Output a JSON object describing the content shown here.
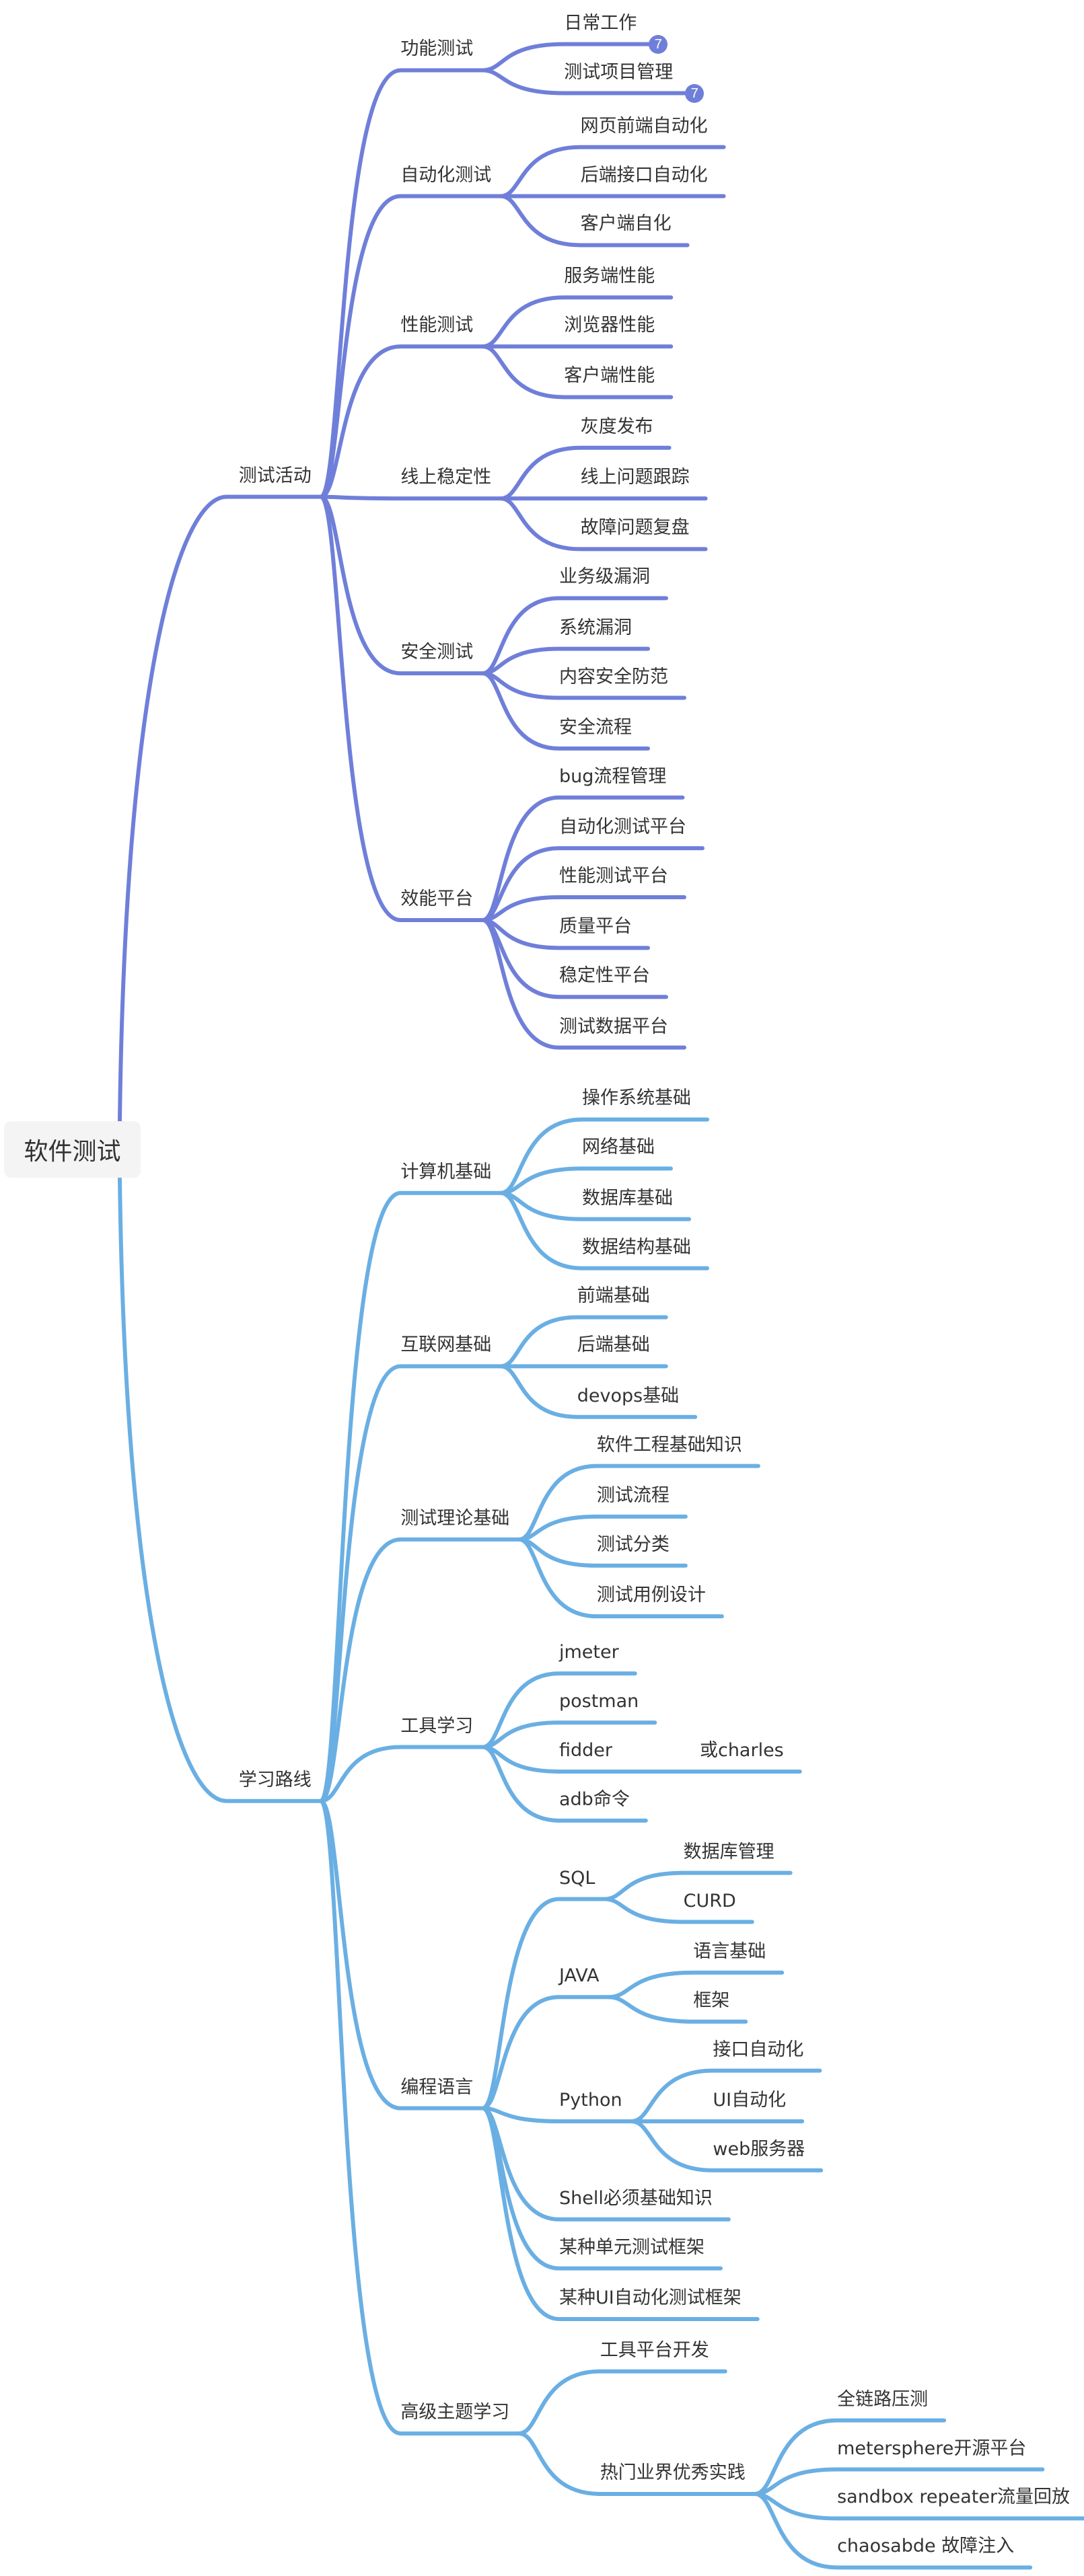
{
  "colors": {
    "branch_testing": "#6f7fd9",
    "branch_learning": "#6aafe3",
    "text": "#333333",
    "root_bg": "#f4f4f4"
  },
  "mindmap": {
    "label": "软件测试",
    "children": [
      {
        "label": "测试活动",
        "children": [
          {
            "label": "功能测试",
            "children": [
              {
                "label": "日常工作",
                "badge": "7"
              },
              {
                "label": "测试项目管理",
                "badge": "7"
              }
            ]
          },
          {
            "label": "自动化测试",
            "children": [
              {
                "label": "网页前端自动化"
              },
              {
                "label": "后端接口自动化"
              },
              {
                "label": "客户端自化"
              }
            ]
          },
          {
            "label": "性能测试",
            "children": [
              {
                "label": "服务端性能"
              },
              {
                "label": "浏览器性能"
              },
              {
                "label": "客户端性能"
              }
            ]
          },
          {
            "label": "线上稳定性",
            "children": [
              {
                "label": "灰度发布"
              },
              {
                "label": "线上问题跟踪"
              },
              {
                "label": "故障问题复盘"
              }
            ]
          },
          {
            "label": "安全测试",
            "children": [
              {
                "label": "业务级漏洞"
              },
              {
                "label": "系统漏洞"
              },
              {
                "label": "内容安全防范"
              },
              {
                "label": "安全流程"
              }
            ]
          },
          {
            "label": "效能平台",
            "children": [
              {
                "label": "bug流程管理"
              },
              {
                "label": "自动化测试平台"
              },
              {
                "label": "性能测试平台"
              },
              {
                "label": "质量平台"
              },
              {
                "label": "稳定性平台"
              },
              {
                "label": "测试数据平台"
              }
            ]
          }
        ]
      },
      {
        "label": "学习路线",
        "children": [
          {
            "label": "计算机基础",
            "children": [
              {
                "label": "操作系统基础"
              },
              {
                "label": "网络基础"
              },
              {
                "label": "数据库基础"
              },
              {
                "label": "数据结构基础"
              }
            ]
          },
          {
            "label": "互联网基础",
            "children": [
              {
                "label": "前端基础"
              },
              {
                "label": "后端基础"
              },
              {
                "label": "devops基础"
              }
            ]
          },
          {
            "label": "测试理论基础",
            "children": [
              {
                "label": "软件工程基础知识"
              },
              {
                "label": "测试流程"
              },
              {
                "label": "测试分类"
              },
              {
                "label": "测试用例设计"
              }
            ]
          },
          {
            "label": "工具学习",
            "children": [
              {
                "label": "jmeter"
              },
              {
                "label": "postman"
              },
              {
                "label": "fidder",
                "extra": "或charles"
              },
              {
                "label": "adb命令"
              }
            ]
          },
          {
            "label": "编程语言",
            "children": [
              {
                "label": "SQL",
                "children": [
                  {
                    "label": "数据库管理"
                  },
                  {
                    "label": "CURD"
                  }
                ]
              },
              {
                "label": "JAVA",
                "children": [
                  {
                    "label": "语言基础"
                  },
                  {
                    "label": "框架"
                  }
                ]
              },
              {
                "label": "Python",
                "children": [
                  {
                    "label": "接口自动化"
                  },
                  {
                    "label": "UI自动化"
                  },
                  {
                    "label": "web服务器"
                  }
                ]
              },
              {
                "label": "Shell必须基础知识"
              },
              {
                "label": "某种单元测试框架"
              },
              {
                "label": "某种UI自动化测试框架"
              }
            ]
          },
          {
            "label": "高级主题学习",
            "children": [
              {
                "label": "工具平台开发"
              },
              {
                "label": "热门业界优秀实践",
                "children": [
                  {
                    "label": "全链路压测"
                  },
                  {
                    "label": "metersphere开源平台"
                  },
                  {
                    "label": "sandbox repeater流量回放"
                  },
                  {
                    "label": "chaosabde 故障注入"
                  }
                ]
              }
            ]
          }
        ]
      }
    ]
  }
}
